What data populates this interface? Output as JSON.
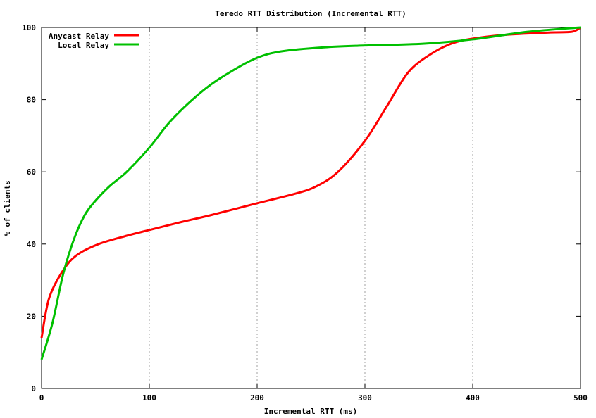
{
  "chart_data": {
    "type": "line",
    "title": "Teredo RTT Distribution (Incremental RTT)",
    "xlabel": "Incremental RTT (ms)",
    "ylabel": "% of clients",
    "xlim": [
      0,
      500
    ],
    "ylim": [
      0,
      100
    ],
    "xticks": [
      0,
      100,
      200,
      300,
      400,
      500
    ],
    "yticks": [
      0,
      20,
      40,
      60,
      80,
      100
    ],
    "grid": "vertical dotted at x ticks",
    "legend": "top-left",
    "series": [
      {
        "name": "Anycast Relay",
        "color": "#ff0000",
        "x": [
          0,
          7,
          20,
          33,
          53,
          79,
          100,
          131,
          157,
          200,
          236,
          255,
          275,
          300,
          320,
          340,
          360,
          380,
          400,
          432,
          472,
          492,
          500
        ],
        "y": [
          14,
          25,
          32.7,
          37,
          40,
          42.3,
          43.9,
          46.2,
          48,
          51.3,
          54,
          56,
          60,
          68.6,
          78,
          87.5,
          92.4,
          95.5,
          96.9,
          98,
          98.6,
          98.8,
          100
        ]
      },
      {
        "name": "Local Relay",
        "color": "#00c000",
        "x": [
          0,
          10,
          20,
          30,
          40,
          50,
          63,
          79,
          100,
          121,
          151,
          177,
          200,
          223,
          262,
          300,
          354,
          400,
          451,
          500
        ],
        "y": [
          8,
          18,
          31.6,
          41.3,
          48,
          52,
          56,
          60,
          66.7,
          74.5,
          82.8,
          88,
          91.6,
          93.4,
          94.5,
          95,
          95.5,
          96.7,
          98.8,
          100
        ]
      }
    ]
  }
}
